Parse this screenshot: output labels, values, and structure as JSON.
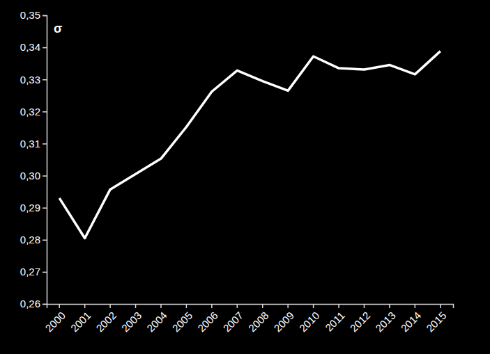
{
  "chart_data": {
    "type": "line",
    "ylabel": "σ",
    "categories": [
      "2000",
      "2001",
      "2002",
      "2003",
      "2004",
      "2005",
      "2006",
      "2007",
      "2008",
      "2009",
      "2010",
      "2011",
      "2012",
      "2013",
      "2014",
      "2015"
    ],
    "values": [
      0.293,
      0.2805,
      0.2957,
      0.3005,
      0.3053,
      0.3152,
      0.3262,
      0.3328,
      0.3295,
      0.3265,
      0.3372,
      0.3335,
      0.3331,
      0.3345,
      0.3316,
      0.3388
    ],
    "color": "#ffffff",
    "ylim": [
      0.26,
      0.35
    ],
    "yticks": [
      {
        "value": 0.26,
        "label": "0,26"
      },
      {
        "value": 0.27,
        "label": "0,27"
      },
      {
        "value": 0.28,
        "label": "0,28"
      },
      {
        "value": 0.29,
        "label": "0,29"
      },
      {
        "value": 0.3,
        "label": "0,30"
      },
      {
        "value": 0.31,
        "label": "0,31"
      },
      {
        "value": 0.32,
        "label": "0,32"
      },
      {
        "value": 0.33,
        "label": "0,33"
      },
      {
        "value": 0.34,
        "label": "0,34"
      },
      {
        "value": 0.35,
        "label": "0,35"
      }
    ],
    "grid": false
  }
}
